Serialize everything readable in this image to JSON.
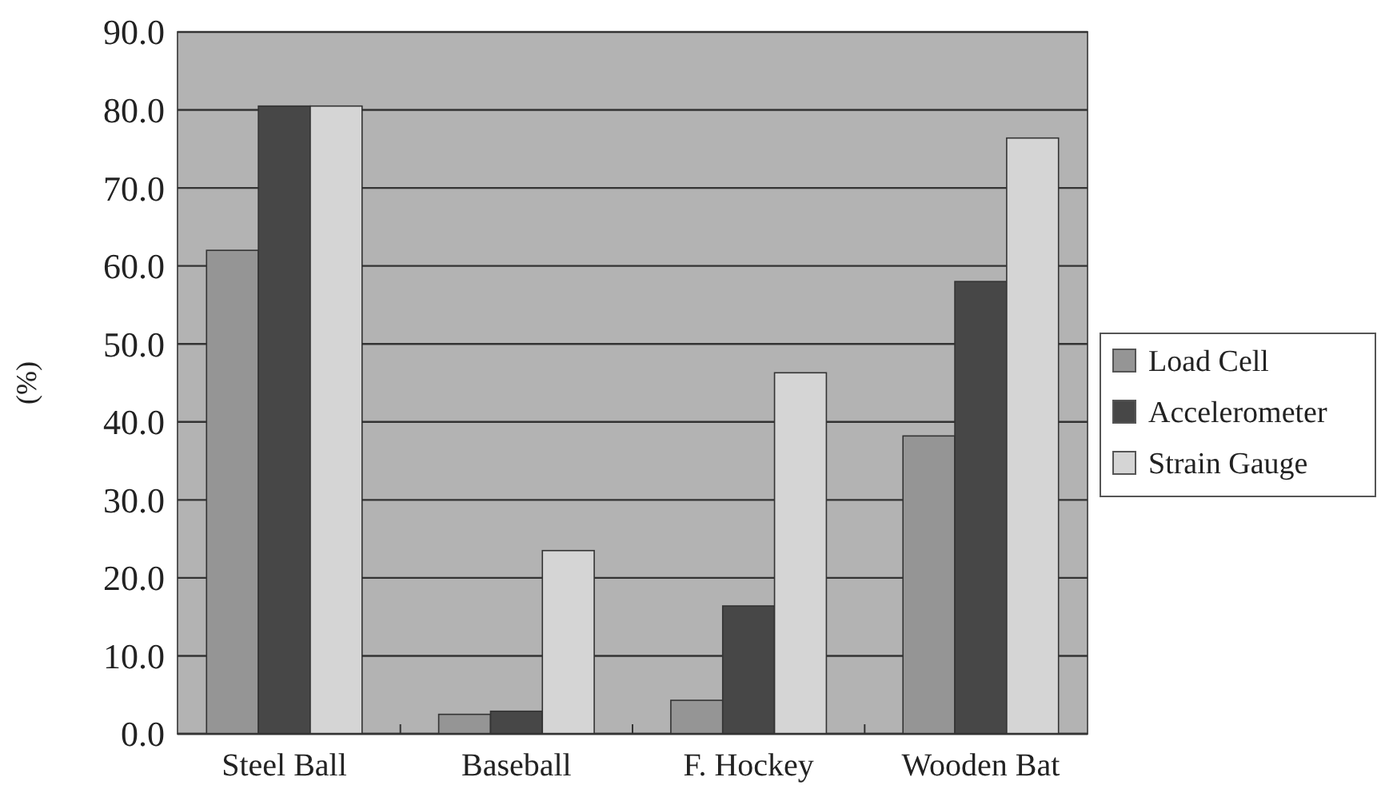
{
  "chart_data": {
    "type": "bar",
    "ylabel": "(%)",
    "categories": [
      "Steel Ball",
      "Baseball",
      "F. Hockey",
      "Wooden Bat"
    ],
    "series": [
      {
        "name": "Load Cell",
        "color": "#959595",
        "values": [
          62.0,
          2.5,
          4.3,
          38.2
        ]
      },
      {
        "name": "Accelerometer",
        "color": "#474747",
        "values": [
          80.5,
          2.9,
          16.4,
          58.0
        ]
      },
      {
        "name": "Strain Gauge",
        "color": "#d5d5d5",
        "values": [
          80.5,
          23.5,
          46.3,
          76.4
        ]
      }
    ],
    "ylim": [
      0,
      90
    ],
    "yticks": [
      {
        "value": 0,
        "label": "0.0"
      },
      {
        "value": 10,
        "label": "10.0"
      },
      {
        "value": 20,
        "label": "20.0"
      },
      {
        "value": 30,
        "label": "30.0"
      },
      {
        "value": 40,
        "label": "40.0"
      },
      {
        "value": 50,
        "label": "50.0"
      },
      {
        "value": 60,
        "label": "60.0"
      },
      {
        "value": 70,
        "label": "70.0"
      },
      {
        "value": 80,
        "label": "80.0"
      },
      {
        "value": 90,
        "label": "90.0"
      }
    ],
    "grid": "y",
    "legend": "right"
  }
}
